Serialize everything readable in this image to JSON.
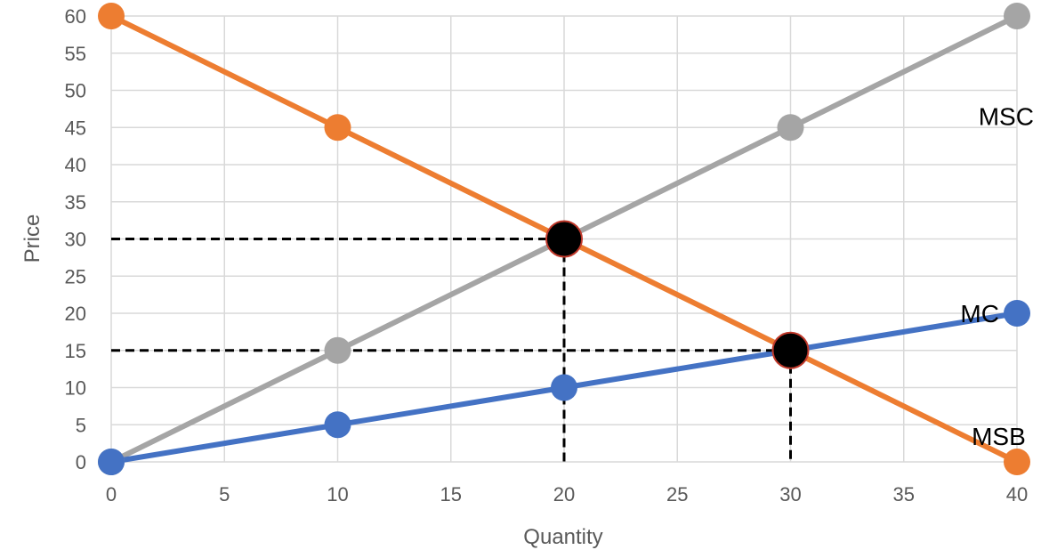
{
  "chart_data": {
    "type": "line",
    "xlabel": "Quantity",
    "ylabel": "Price",
    "xlim": [
      0,
      40
    ],
    "ylim": [
      0,
      60
    ],
    "x_ticks": [
      0,
      5,
      10,
      15,
      20,
      25,
      30,
      35,
      40
    ],
    "y_ticks": [
      0,
      5,
      10,
      15,
      20,
      25,
      30,
      35,
      40,
      45,
      50,
      55,
      60
    ],
    "grid": true,
    "series": [
      {
        "name": "MSB",
        "color": "#ED7D31",
        "points": [
          [
            0,
            60
          ],
          [
            10,
            45
          ],
          [
            20,
            30
          ],
          [
            30,
            15
          ],
          [
            40,
            0
          ]
        ],
        "markers": [
          [
            0,
            60
          ],
          [
            10,
            45
          ],
          [
            40,
            0
          ]
        ]
      },
      {
        "name": "MSC",
        "color": "#A5A5A5",
        "points": [
          [
            0,
            0
          ],
          [
            10,
            15
          ],
          [
            20,
            30
          ],
          [
            30,
            45
          ],
          [
            40,
            60
          ]
        ],
        "markers": [
          [
            0,
            0
          ],
          [
            10,
            15
          ],
          [
            30,
            45
          ],
          [
            40,
            60
          ]
        ]
      },
      {
        "name": "MC",
        "color": "#4472C4",
        "points": [
          [
            0,
            0
          ],
          [
            10,
            5
          ],
          [
            20,
            10
          ],
          [
            30,
            15
          ],
          [
            40,
            20
          ]
        ],
        "markers": [
          [
            0,
            0
          ],
          [
            10,
            5
          ],
          [
            20,
            10
          ],
          [
            40,
            20
          ]
        ]
      }
    ],
    "series_labels": [
      {
        "text": "MSC",
        "x": 38.3,
        "y": 46.5
      },
      {
        "text": "MC",
        "x": 37.5,
        "y": 20
      },
      {
        "text": "MSB",
        "x": 38,
        "y": 3.5
      }
    ],
    "equilibria": [
      {
        "x": 20,
        "y": 30,
        "color": "#000000",
        "edge": "#C0392B"
      },
      {
        "x": 30,
        "y": 15,
        "color": "#000000",
        "edge": "#C0392B"
      }
    ],
    "guide_lines": [
      {
        "x1": 0,
        "y1": 30,
        "x2": 20,
        "y2": 30
      },
      {
        "x1": 20,
        "y1": 30,
        "x2": 20,
        "y2": 0
      },
      {
        "x1": 0,
        "y1": 15,
        "x2": 30,
        "y2": 15
      },
      {
        "x1": 30,
        "y1": 15,
        "x2": 30,
        "y2": 0
      }
    ]
  }
}
